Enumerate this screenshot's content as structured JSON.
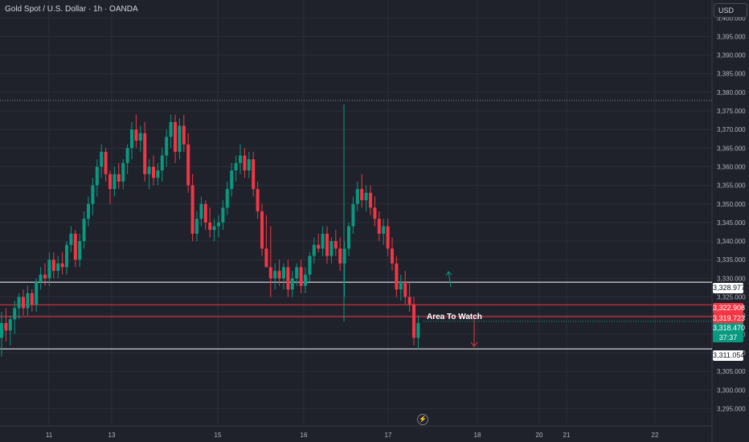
{
  "header": {
    "symbol_title": "Gold Spot / U.S. Dollar · 1h · OANDA",
    "currency_label": "USD"
  },
  "annotation": {
    "text": "Area To Watch"
  },
  "price_tags": [
    {
      "label": "3,328.977",
      "value": 3328.977,
      "style": "white"
    },
    {
      "label": "3,322.908",
      "value": 3322.908,
      "style": "red"
    },
    {
      "label": "3,319.723",
      "value": 3319.723,
      "style": "red"
    },
    {
      "label": "3,311.054",
      "value": 3311.054,
      "style": "white"
    }
  ],
  "last_price": {
    "label": "3,318.470",
    "countdown": "37:37",
    "value": 3318.47
  },
  "colors": {
    "background": "#1f222b",
    "grid": "#2a2e39",
    "up": "#089981",
    "down": "#f23645",
    "level_line": "#ffffff",
    "zone_line": "#f23645",
    "text": "#b2b5be"
  },
  "icons": {
    "replay": "lightning-icon",
    "up_arrow": "arrow-up-icon",
    "down_arrow": "arrow-down-icon"
  },
  "chart_data": {
    "type": "candlestick",
    "title": "Gold Spot / U.S. Dollar · 1h · OANDA",
    "y_axis_unit": "USD",
    "ylim": [
      3292,
      3402
    ],
    "y_ticks": [
      3295,
      3300,
      3305,
      3310,
      3315,
      3320,
      3325,
      3330,
      3335,
      3340,
      3345,
      3350,
      3355,
      3360,
      3365,
      3370,
      3375,
      3380,
      3385,
      3390,
      3395,
      3400
    ],
    "x_ticks": [
      "11",
      "13",
      "15",
      "16",
      "17",
      "18",
      "20",
      "21",
      "22"
    ],
    "horizontal_levels": [
      3328.977,
      3322.908,
      3319.723,
      3311.054
    ],
    "dotted_level": 3377.8,
    "annotation": "Area To Watch",
    "ohlc": [
      [
        3314,
        3321,
        3309,
        3318
      ],
      [
        3318,
        3322,
        3313,
        3316
      ],
      [
        3316,
        3320,
        3312,
        3319
      ],
      [
        3319,
        3324,
        3315,
        3322
      ],
      [
        3322,
        3326,
        3319,
        3325
      ],
      [
        3325,
        3327,
        3320,
        3322
      ],
      [
        3322,
        3328,
        3320,
        3326
      ],
      [
        3326,
        3327,
        3321,
        3323
      ],
      [
        3323,
        3330,
        3321,
        3329
      ],
      [
        3329,
        3333,
        3327,
        3331
      ],
      [
        3331,
        3334,
        3328,
        3330
      ],
      [
        3330,
        3337,
        3328,
        3335
      ],
      [
        3335,
        3337,
        3330,
        3332
      ],
      [
        3332,
        3336,
        3330,
        3334
      ],
      [
        3334,
        3337,
        3331,
        3333
      ],
      [
        3333,
        3340,
        3331,
        3339
      ],
      [
        3339,
        3344,
        3337,
        3342
      ],
      [
        3342,
        3343,
        3333,
        3335
      ],
      [
        3335,
        3342,
        3333,
        3340
      ],
      [
        3340,
        3348,
        3338,
        3346
      ],
      [
        3346,
        3352,
        3344,
        3350
      ],
      [
        3350,
        3357,
        3347,
        3355
      ],
      [
        3355,
        3362,
        3352,
        3360
      ],
      [
        3360,
        3366,
        3357,
        3364
      ],
      [
        3364,
        3365,
        3356,
        3358
      ],
      [
        3358,
        3359,
        3350,
        3354
      ],
      [
        3354,
        3360,
        3352,
        3358
      ],
      [
        3358,
        3361,
        3354,
        3356
      ],
      [
        3356,
        3362,
        3354,
        3361
      ],
      [
        3361,
        3366,
        3358,
        3365
      ],
      [
        3365,
        3372,
        3362,
        3370
      ],
      [
        3370,
        3374,
        3365,
        3367
      ],
      [
        3367,
        3371,
        3364,
        3369
      ],
      [
        3369,
        3372,
        3356,
        3358
      ],
      [
        3358,
        3362,
        3354,
        3360
      ],
      [
        3360,
        3363,
        3355,
        3357
      ],
      [
        3357,
        3361,
        3355,
        3359
      ],
      [
        3359,
        3365,
        3356,
        3363
      ],
      [
        3363,
        3370,
        3360,
        3368
      ],
      [
        3368,
        3374,
        3365,
        3372
      ],
      [
        3372,
        3374,
        3361,
        3364
      ],
      [
        3364,
        3373,
        3362,
        3371
      ],
      [
        3371,
        3374,
        3364,
        3366
      ],
      [
        3366,
        3369,
        3353,
        3355
      ],
      [
        3355,
        3358,
        3340,
        3342
      ],
      [
        3342,
        3348,
        3340,
        3346
      ],
      [
        3346,
        3352,
        3344,
        3350
      ],
      [
        3350,
        3351,
        3343,
        3345
      ],
      [
        3345,
        3349,
        3341,
        3343
      ],
      [
        3343,
        3346,
        3340,
        3344
      ],
      [
        3344,
        3347,
        3341,
        3345
      ],
      [
        3345,
        3351,
        3343,
        3349
      ],
      [
        3349,
        3356,
        3347,
        3354
      ],
      [
        3354,
        3361,
        3352,
        3359
      ],
      [
        3359,
        3363,
        3356,
        3361
      ],
      [
        3361,
        3366,
        3358,
        3363
      ],
      [
        3363,
        3365,
        3357,
        3359
      ],
      [
        3359,
        3364,
        3357,
        3362
      ],
      [
        3362,
        3364,
        3352,
        3354
      ],
      [
        3354,
        3356,
        3346,
        3348
      ],
      [
        3348,
        3350,
        3336,
        3338
      ],
      [
        3338,
        3347,
        3334,
        3333
      ],
      [
        3333,
        3344,
        3325,
        3330
      ],
      [
        3330,
        3334,
        3327,
        3332
      ],
      [
        3332,
        3335,
        3328,
        3330
      ],
      [
        3330,
        3334,
        3327,
        3333
      ],
      [
        3333,
        3335,
        3325,
        3327
      ],
      [
        3327,
        3332,
        3325,
        3330
      ],
      [
        3330,
        3334,
        3328,
        3333
      ],
      [
        3333,
        3335,
        3326,
        3328
      ],
      [
        3328,
        3333,
        3326,
        3331
      ],
      [
        3331,
        3337,
        3329,
        3336
      ],
      [
        3336,
        3341,
        3334,
        3339
      ],
      [
        3339,
        3342,
        3337,
        3338
      ],
      [
        3338,
        3344,
        3336,
        3342
      ],
      [
        3342,
        3344,
        3334,
        3336
      ],
      [
        3336,
        3341,
        3334,
        3340
      ],
      [
        3340,
        3343,
        3336,
        3338
      ],
      [
        3338,
        3341,
        3332,
        3334
      ],
      [
        3334,
        3340,
        3325,
        3338
      ],
      [
        3338,
        3345,
        3336,
        3344
      ],
      [
        3344,
        3352,
        3342,
        3350
      ],
      [
        3350,
        3356,
        3348,
        3354
      ],
      [
        3354,
        3358,
        3349,
        3351
      ],
      [
        3351,
        3355,
        3348,
        3353
      ],
      [
        3353,
        3355,
        3347,
        3349
      ],
      [
        3349,
        3352,
        3344,
        3346
      ],
      [
        3346,
        3348,
        3340,
        3342
      ],
      [
        3342,
        3346,
        3339,
        3344
      ],
      [
        3344,
        3346,
        3336,
        3338
      ],
      [
        3338,
        3341,
        3332,
        3334
      ],
      [
        3334,
        3336,
        3325,
        3327
      ],
      [
        3327,
        3331,
        3324,
        3329
      ],
      [
        3329,
        3332,
        3323,
        3325
      ],
      [
        3325,
        3329,
        3321,
        3323
      ],
      [
        3323,
        3325,
        3312,
        3314
      ],
      [
        3314,
        3320,
        3311,
        3318
      ]
    ]
  }
}
